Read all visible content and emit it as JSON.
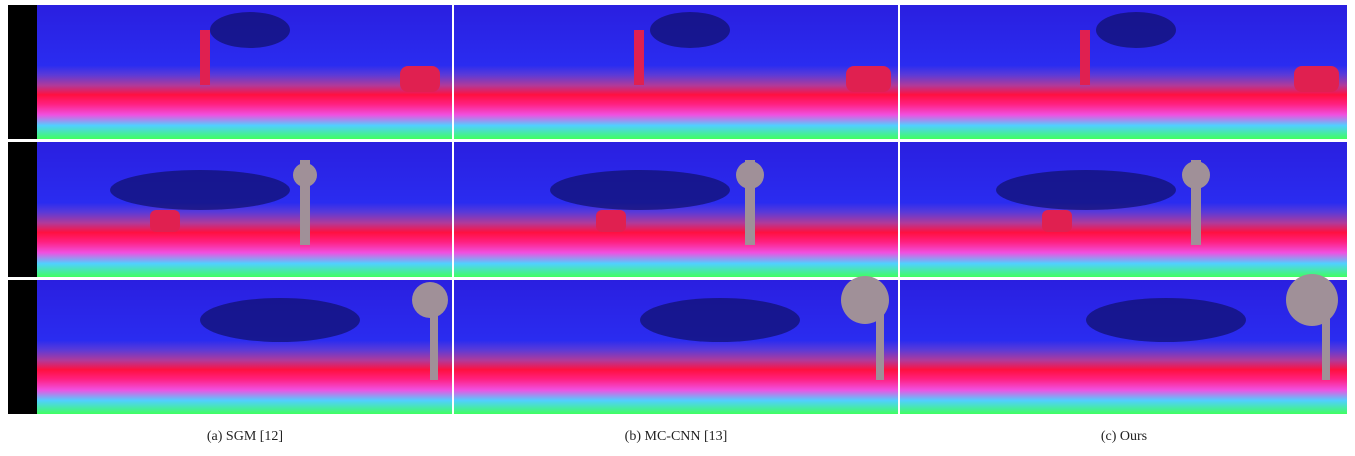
{
  "figure": {
    "captions": [
      "(a) SGM [12]",
      "(b) MC-CNN [13]",
      "(c) Ours"
    ]
  }
}
